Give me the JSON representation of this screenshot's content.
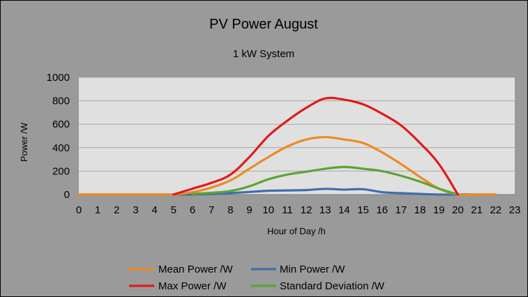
{
  "chart_data": {
    "type": "line",
    "title": "PV Power August",
    "subtitle": "1 kW System",
    "xlabel": "Hour of Day /h",
    "ylabel": "Power /W",
    "xlim": [
      0,
      23
    ],
    "ylim": [
      0,
      1000
    ],
    "x_ticks": [
      "0",
      "1",
      "2",
      "3",
      "4",
      "5",
      "6",
      "7",
      "8",
      "9",
      "10",
      "11",
      "12",
      "13",
      "14",
      "15",
      "16",
      "17",
      "18",
      "19",
      "20",
      "21",
      "22",
      "23"
    ],
    "y_ticks": [
      "0",
      "200",
      "400",
      "600",
      "800",
      "1000"
    ],
    "grid": true,
    "legend_position": "bottom",
    "background_color": "#9a9a9a",
    "plot_area_color": "#e0e0e0",
    "series": [
      {
        "name": "Mean Power /W",
        "color": "#ed8a1f",
        "x": [
          0,
          1,
          2,
          3,
          4,
          5,
          6,
          7,
          8,
          9,
          10,
          11,
          12,
          13,
          14,
          15,
          16,
          17,
          18,
          19,
          20,
          21,
          22
        ],
        "y": [
          0,
          0,
          0,
          0,
          0,
          0,
          20,
          60,
          120,
          220,
          320,
          410,
          470,
          490,
          470,
          440,
          360,
          260,
          150,
          50,
          0,
          0,
          0
        ]
      },
      {
        "name": "Min Power /W",
        "color": "#3f6eab",
        "x": [
          0,
          1,
          2,
          3,
          4,
          5,
          6,
          7,
          8,
          9,
          10,
          11,
          12,
          13,
          14,
          15,
          16,
          17,
          18,
          19,
          20,
          21,
          22
        ],
        "y": [
          0,
          0,
          0,
          0,
          0,
          0,
          0,
          5,
          12,
          22,
          32,
          35,
          38,
          48,
          42,
          45,
          20,
          12,
          5,
          0,
          0,
          0,
          0
        ]
      },
      {
        "name": "Max Power /W",
        "color": "#e01a1a",
        "x": [
          5,
          6,
          7,
          8,
          9,
          10,
          11,
          12,
          13,
          14,
          15,
          16,
          17,
          18,
          19,
          20
        ],
        "y": [
          0,
          50,
          100,
          170,
          320,
          500,
          630,
          740,
          820,
          810,
          770,
          690,
          590,
          440,
          260,
          0
        ]
      },
      {
        "name": "Standard Deviation /W",
        "color": "#5aa530",
        "x": [
          6,
          7,
          8,
          9,
          10,
          11,
          12,
          13,
          14,
          15,
          16,
          17,
          18,
          19,
          20
        ],
        "y": [
          5,
          15,
          30,
          70,
          130,
          170,
          195,
          220,
          235,
          220,
          200,
          160,
          110,
          50,
          0
        ]
      }
    ]
  }
}
